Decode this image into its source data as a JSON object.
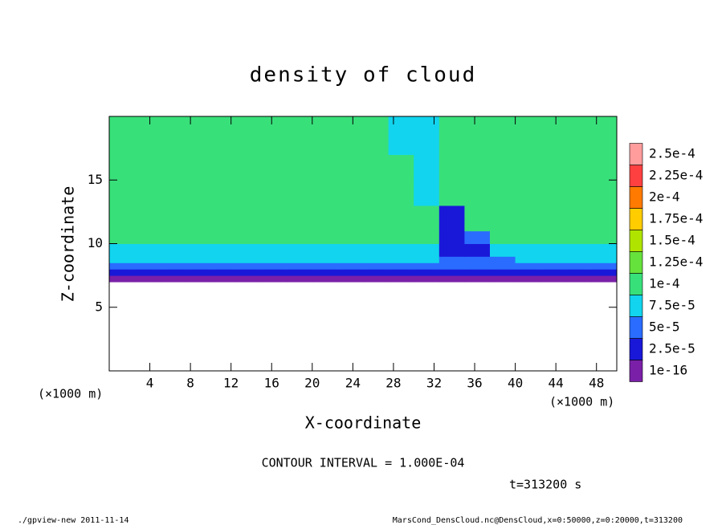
{
  "chart_data": {
    "type": "heatmap",
    "title": "density of cloud",
    "x_label": "X-coordinate",
    "y_label": "Z-coordinate",
    "x_unit_label": "(×1000 m)",
    "y_unit_label": "(×1000 m)",
    "annotation": "CONTOUR INTERVAL = 1.000E-04",
    "time_label": "t=313200 s",
    "footer_left": "./gpview-new  2011-11-14",
    "footer_right": "MarsCond_DensCloud.nc@DensCloud,x=0:50000,z=0:20000,t=313200",
    "xlim": [
      0,
      50
    ],
    "ylim": [
      0,
      20
    ],
    "xticks": [
      4,
      8,
      12,
      16,
      20,
      24,
      28,
      32,
      36,
      40,
      44,
      48
    ],
    "yticks": [
      5,
      10,
      15
    ],
    "x_edges": [
      0,
      2.5,
      5,
      7.5,
      10,
      12.5,
      15,
      17.5,
      20,
      22.5,
      25,
      27.5,
      30,
      32.5,
      35,
      37.5,
      40,
      42.5,
      45,
      47.5,
      50
    ],
    "y_edges": [
      0,
      7,
      7.5,
      8,
      8.5,
      9,
      10,
      11,
      12,
      13,
      15,
      17,
      20
    ],
    "values": [
      [
        null,
        null,
        null,
        null,
        null,
        null,
        null,
        null,
        null,
        null,
        null,
        null,
        null,
        null,
        null,
        null,
        null,
        null,
        null,
        null
      ],
      [
        1e-05,
        1e-05,
        1e-05,
        1e-05,
        1e-05,
        1e-05,
        1e-05,
        1e-05,
        1e-05,
        1e-05,
        1e-05,
        1e-05,
        1e-05,
        1e-05,
        1e-05,
        1e-05,
        1e-05,
        1e-05,
        1e-05,
        1e-05
      ],
      [
        3.5e-05,
        3.5e-05,
        3.5e-05,
        3.5e-05,
        3.5e-05,
        3.5e-05,
        3.5e-05,
        3.5e-05,
        3.5e-05,
        3.5e-05,
        3.5e-05,
        3.5e-05,
        3.5e-05,
        3.5e-05,
        3.5e-05,
        3.5e-05,
        3.5e-05,
        3.5e-05,
        3.5e-05,
        3.5e-05
      ],
      [
        6e-05,
        6e-05,
        6e-05,
        6e-05,
        6e-05,
        6e-05,
        6e-05,
        6e-05,
        6e-05,
        6e-05,
        6e-05,
        6e-05,
        6e-05,
        6e-05,
        6e-05,
        6e-05,
        6e-05,
        6e-05,
        6e-05,
        6e-05
      ],
      [
        8e-05,
        8e-05,
        8e-05,
        8e-05,
        8e-05,
        8e-05,
        8e-05,
        8e-05,
        8e-05,
        8e-05,
        8e-05,
        8e-05,
        8e-05,
        6e-05,
        6e-05,
        6e-05,
        8e-05,
        8e-05,
        8e-05,
        8e-05
      ],
      [
        9e-05,
        9e-05,
        9e-05,
        9e-05,
        9e-05,
        9e-05,
        9e-05,
        9e-05,
        9e-05,
        9e-05,
        9e-05,
        9e-05,
        9e-05,
        4e-05,
        4e-05,
        9e-05,
        9e-05,
        9e-05,
        9e-05,
        9e-05
      ],
      [
        0.00011,
        0.00011,
        0.00011,
        0.00011,
        0.00011,
        0.00011,
        0.00011,
        0.00011,
        0.00011,
        0.00011,
        0.00011,
        0.00011,
        0.00011,
        3e-05,
        6e-05,
        0.00011,
        0.00011,
        0.00011,
        0.00011,
        0.00011
      ],
      [
        0.000115,
        0.000115,
        0.000115,
        0.000115,
        0.000115,
        0.000115,
        0.000115,
        0.000115,
        0.000115,
        0.000115,
        0.000115,
        0.000115,
        0.000115,
        3e-05,
        0.000115,
        0.000115,
        0.000115,
        0.000115,
        0.000115,
        0.000115
      ],
      [
        0.00012,
        0.00012,
        0.00012,
        0.00012,
        0.00012,
        0.00012,
        0.00012,
        0.00012,
        0.00012,
        0.00012,
        0.00012,
        0.00012,
        0.00012,
        4e-05,
        0.00012,
        0.00012,
        0.00012,
        0.00012,
        0.00012,
        0.00012
      ],
      [
        0.00012,
        0.00012,
        0.00012,
        0.00012,
        0.00012,
        0.00012,
        0.00012,
        0.00012,
        0.00012,
        0.00012,
        0.00012,
        0.00012,
        9e-05,
        0.00012,
        0.00012,
        0.00012,
        0.00012,
        0.00012,
        0.00012,
        0.00012
      ],
      [
        0.00012,
        0.00012,
        0.00012,
        0.00012,
        0.00012,
        0.00012,
        0.00012,
        0.00012,
        0.00012,
        0.00012,
        0.00012,
        0.00012,
        9e-05,
        0.00012,
        0.00012,
        0.00012,
        0.00012,
        0.00012,
        0.00012,
        0.00012
      ],
      [
        0.000115,
        0.000115,
        0.000115,
        0.000115,
        0.000115,
        0.000115,
        0.000115,
        0.000115,
        0.000115,
        0.000115,
        0.000115,
        9e-05,
        9e-05,
        0.000115,
        0.000115,
        0.000115,
        0.000115,
        0.000115,
        0.000115,
        0.000115
      ]
    ],
    "levels": [
      {
        "value": 1e-16,
        "label": "1e-16",
        "color": "#7a20a8"
      },
      {
        "value": 2.5e-05,
        "label": "2.5e-5",
        "color": "#1a18d8"
      },
      {
        "value": 5e-05,
        "label": "5e-5",
        "color": "#2a6cff"
      },
      {
        "value": 7.5e-05,
        "label": "7.5e-5",
        "color": "#12d4ee"
      },
      {
        "value": 0.0001,
        "label": "1e-4",
        "color": "#38e07a"
      },
      {
        "value": 0.000125,
        "label": "1.25e-4",
        "color": "#66e23c"
      },
      {
        "value": 0.00015,
        "label": "1.5e-4",
        "color": "#b0e400"
      },
      {
        "value": 0.000175,
        "label": "1.75e-4",
        "color": "#ffcc00"
      },
      {
        "value": 0.0002,
        "label": "2e-4",
        "color": "#ff7a00"
      },
      {
        "value": 0.000225,
        "label": "2.25e-4",
        "color": "#ff4040"
      },
      {
        "value": 0.00025,
        "label": "2.5e-4",
        "color": "#ff9c9c"
      }
    ]
  }
}
